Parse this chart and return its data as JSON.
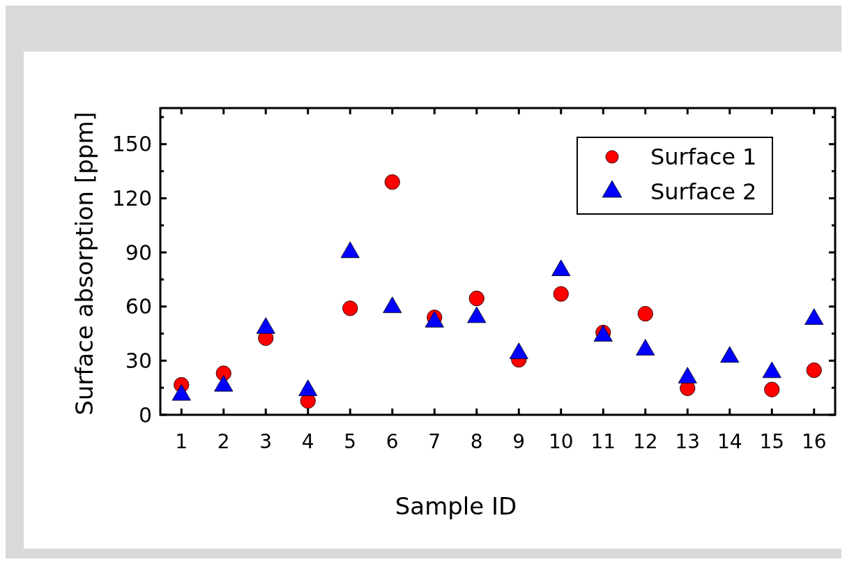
{
  "chart_data": {
    "type": "scatter",
    "xlabel": "Sample ID",
    "ylabel": "Surface absorption [ppm]",
    "x": [
      1,
      2,
      3,
      4,
      5,
      6,
      7,
      8,
      9,
      10,
      11,
      12,
      13,
      14,
      15,
      16
    ],
    "xlim": [
      0.5,
      16.5
    ],
    "xticks": [
      1,
      2,
      3,
      4,
      5,
      6,
      7,
      8,
      9,
      10,
      11,
      12,
      13,
      14,
      15,
      16
    ],
    "ylim": [
      0,
      170
    ],
    "yticks": [
      0,
      {
        "value": 15,
        "label": null
      },
      30,
      {
        "value": 45,
        "label": null
      },
      60,
      {
        "value": 75,
        "label": null
      },
      90,
      {
        "value": 105,
        "label": null
      },
      120,
      {
        "value": 135,
        "label": null
      },
      150,
      {
        "value": 165,
        "label": null
      }
    ],
    "grid": false,
    "legend": "top right",
    "series": [
      {
        "name": "Surface 1",
        "color": "#ff0000",
        "marker": "circle",
        "values": [
          16.6,
          23,
          42.5,
          7.7,
          59,
          129,
          54,
          64.5,
          30.5,
          67,
          45.6,
          56,
          14.7,
          null,
          14,
          24.7
        ]
      },
      {
        "name": "Surface 2",
        "color": "#0000ff",
        "marker": "triangle",
        "values": [
          11,
          16,
          48,
          13.5,
          90,
          59.5,
          51.5,
          54,
          34,
          80,
          43.7,
          36,
          20.5,
          32,
          23.5,
          53
        ]
      }
    ]
  }
}
